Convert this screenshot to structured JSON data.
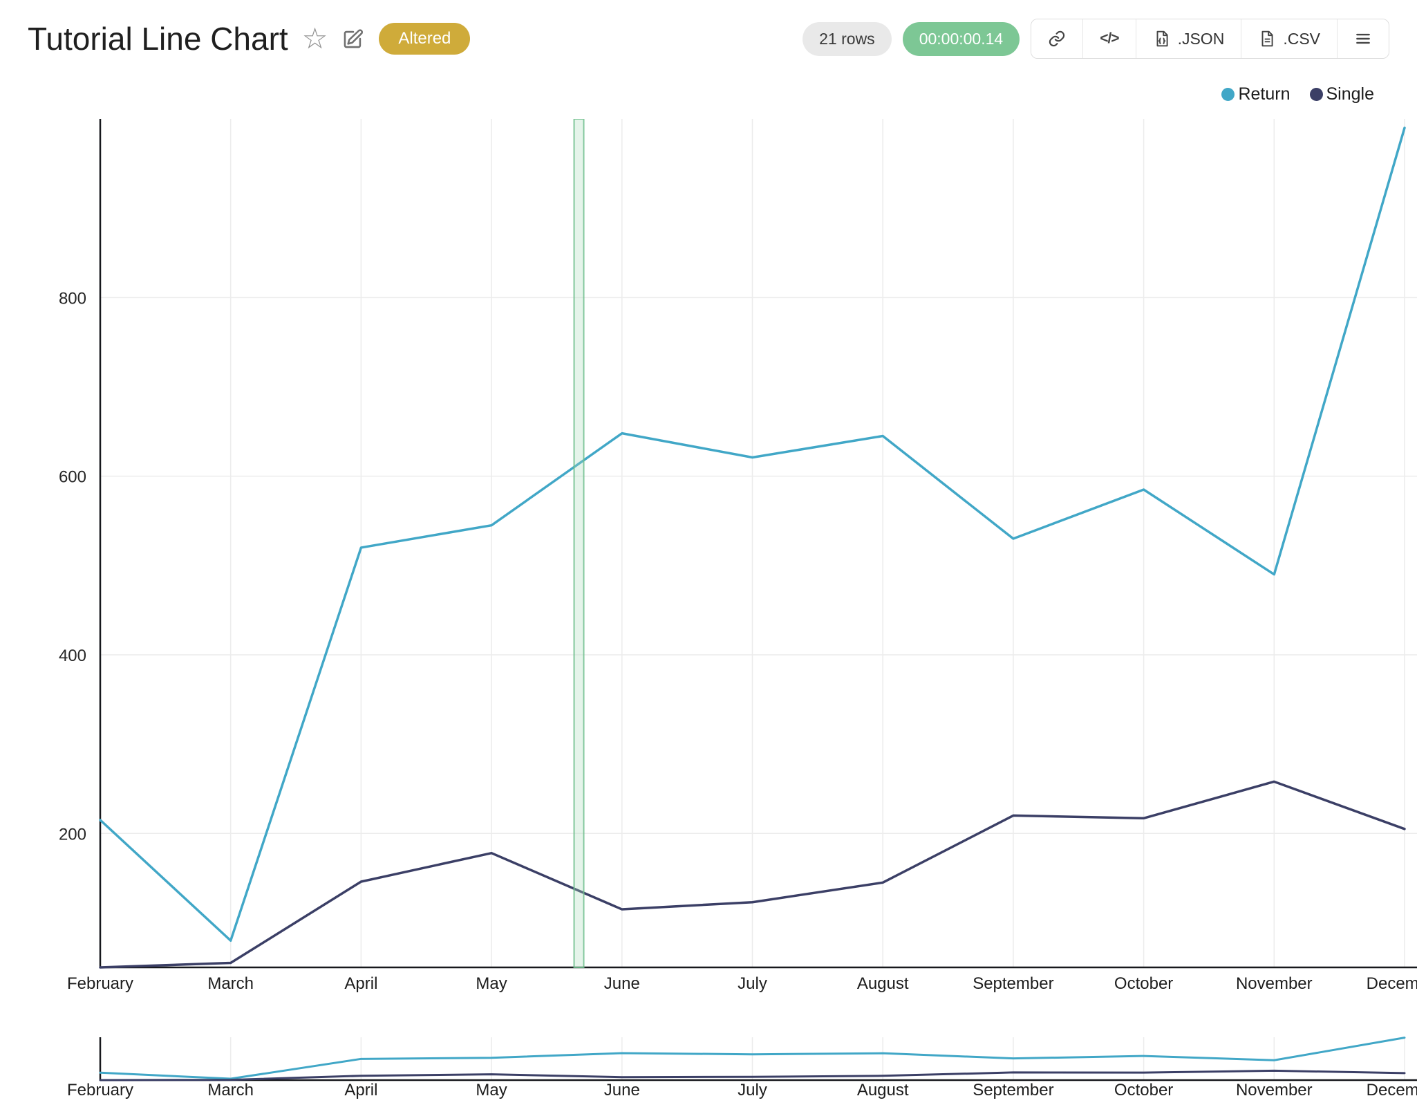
{
  "header": {
    "title": "Tutorial Line Chart",
    "altered_badge": "Altered"
  },
  "toolbar": {
    "rows_badge": "21 rows",
    "duration_badge": "00:00:00.14",
    "json_label": ".JSON",
    "csv_label": ".CSV"
  },
  "colors": {
    "series_return": "#41a7c7",
    "series_single": "#3b3f66",
    "altered_badge": "#cfab3a",
    "duration_badge": "#7dc795",
    "rows_badge_bg": "#e9e9e9"
  },
  "chart_data": {
    "type": "line",
    "title": "Tutorial Line Chart",
    "categories": [
      "February",
      "March",
      "April",
      "May",
      "June",
      "July",
      "August",
      "September",
      "October",
      "November",
      "December"
    ],
    "series": [
      {
        "name": "Return",
        "color": "#41a7c7",
        "values": [
          215,
          80,
          520,
          545,
          648,
          621,
          645,
          530,
          585,
          490,
          990
        ]
      },
      {
        "name": "Single",
        "color": "#3b3f66",
        "values": [
          50,
          55,
          146,
          178,
          115,
          123,
          145,
          220,
          217,
          258,
          205
        ]
      }
    ],
    "xlabel": "",
    "ylabel": "",
    "yticks": [
      200,
      400,
      600,
      800
    ],
    "ylim": [
      50,
      1000
    ],
    "grid": true,
    "legend_position": "top-right",
    "highlight_band": {
      "x_index": 3.67,
      "fill": "#aadcb9",
      "border": "#6ebe8c"
    },
    "has_range_selector_mini_chart": true
  }
}
